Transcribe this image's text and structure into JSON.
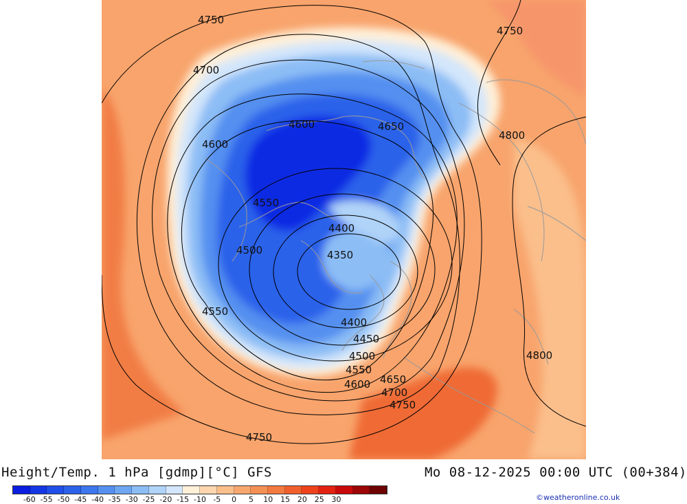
{
  "title_left": "Height/Temp. 1 hPa [gdmp][°C] GFS",
  "title_right": "Mo 08-12-2025 00:00 UTC (00+384)",
  "credit": "©weatheronline.co.uk",
  "colorbar": {
    "tick_labels": [
      "-60",
      "-55",
      "-50",
      "-45",
      "-40",
      "-35",
      "-30",
      "-25",
      "-20",
      "-15",
      "-10",
      "-5",
      "0",
      "5",
      "10",
      "15",
      "20",
      "25",
      "30"
    ],
    "colors": [
      "#0a1de0",
      "#1437e6",
      "#1f4fe8",
      "#2c62ea",
      "#3d77ee",
      "#5590f0",
      "#6ea6f2",
      "#8cbdf5",
      "#b0d3f8",
      "#d3e6fb",
      "#fff0d8",
      "#fdd6b0",
      "#fbbf8c",
      "#f8a86e",
      "#f59055",
      "#f37a40",
      "#f1602c",
      "#ee421c",
      "#e42212",
      "#c80a0a",
      "#9c0606",
      "#6e0303"
    ]
  },
  "contour_labels": [
    {
      "text": "4750",
      "id": "lbl-4750-a"
    },
    {
      "text": "4750",
      "id": "lbl-4750-b"
    },
    {
      "text": "4700",
      "id": "lbl-4700-a"
    },
    {
      "text": "4600",
      "id": "lbl-4600-a"
    },
    {
      "text": "4650",
      "id": "lbl-4650-a"
    },
    {
      "text": "4800",
      "id": "lbl-4800-a"
    },
    {
      "text": "4600",
      "id": "lbl-4600-b"
    },
    {
      "text": "4550",
      "id": "lbl-4550-a"
    },
    {
      "text": "4400",
      "id": "lbl-4400-a"
    },
    {
      "text": "4500",
      "id": "lbl-4500-a"
    },
    {
      "text": "4350",
      "id": "lbl-4350"
    },
    {
      "text": "4550",
      "id": "lbl-4550-b"
    },
    {
      "text": "4400",
      "id": "lbl-4400-b"
    },
    {
      "text": "4450",
      "id": "lbl-4450"
    },
    {
      "text": "4500",
      "id": "lbl-4500-b"
    },
    {
      "text": "4800",
      "id": "lbl-4800-b"
    },
    {
      "text": "4550",
      "id": "lbl-4550-c"
    },
    {
      "text": "4650",
      "id": "lbl-4650-b"
    },
    {
      "text": "4600",
      "id": "lbl-4600-c"
    },
    {
      "text": "4700",
      "id": "lbl-4700-b"
    },
    {
      "text": "4750",
      "id": "lbl-4750-c"
    },
    {
      "text": "4750",
      "id": "lbl-4750-d"
    }
  ]
}
